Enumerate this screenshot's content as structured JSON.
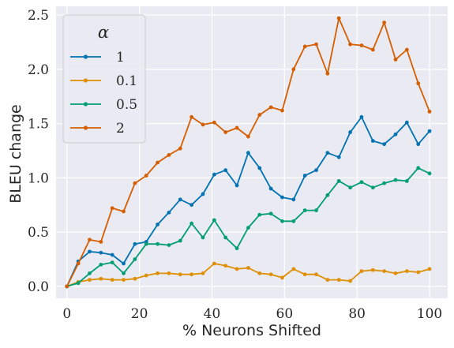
{
  "chart_data": {
    "type": "line",
    "xlabel": "% Neurons Shifted",
    "ylabel": "BLEU change",
    "xlim": [
      -3,
      105
    ],
    "ylim": [
      -0.11,
      2.58
    ],
    "xticks": [
      0,
      20,
      40,
      60,
      80,
      100
    ],
    "yticks": [
      0.0,
      0.5,
      1.0,
      1.5,
      2.0,
      2.5
    ],
    "xtick_labels": [
      "0",
      "20",
      "40",
      "60",
      "80",
      "100"
    ],
    "ytick_labels": [
      "0.0",
      "0.5",
      "1.0",
      "1.5",
      "2.0",
      "2.5"
    ],
    "grid": true,
    "legend": {
      "title": "α",
      "position": "top-left"
    },
    "x": [
      0,
      3.125,
      6.25,
      9.375,
      12.5,
      15.625,
      18.75,
      21.875,
      25,
      28.125,
      31.25,
      34.375,
      37.5,
      40.625,
      43.75,
      46.875,
      50,
      53.125,
      56.25,
      59.375,
      62.5,
      65.625,
      68.75,
      71.875,
      75,
      78.125,
      81.25,
      84.375,
      87.5,
      90.625,
      93.75,
      96.875,
      100
    ],
    "series": [
      {
        "name": "1",
        "color": "#0173b2",
        "values": [
          0.0,
          0.23,
          0.32,
          0.31,
          0.29,
          0.21,
          0.39,
          0.41,
          0.57,
          0.68,
          0.8,
          0.75,
          0.85,
          1.03,
          1.07,
          0.93,
          1.23,
          1.09,
          0.9,
          0.82,
          0.8,
          1.02,
          1.07,
          1.23,
          1.19,
          1.42,
          1.56,
          1.34,
          1.31,
          1.4,
          1.51,
          1.31,
          1.43
        ]
      },
      {
        "name": "0.1",
        "color": "#de8f05",
        "values": [
          0.0,
          0.04,
          0.06,
          0.07,
          0.06,
          0.06,
          0.07,
          0.1,
          0.12,
          0.12,
          0.11,
          0.11,
          0.12,
          0.21,
          0.19,
          0.16,
          0.17,
          0.12,
          0.11,
          0.08,
          0.16,
          0.11,
          0.11,
          0.06,
          0.06,
          0.05,
          0.14,
          0.15,
          0.14,
          0.12,
          0.14,
          0.13,
          0.16
        ]
      },
      {
        "name": "0.5",
        "color": "#029e73",
        "values": [
          0.0,
          0.03,
          0.12,
          0.2,
          0.22,
          0.12,
          0.25,
          0.39,
          0.39,
          0.38,
          0.42,
          0.58,
          0.45,
          0.61,
          0.45,
          0.35,
          0.54,
          0.66,
          0.67,
          0.6,
          0.6,
          0.7,
          0.7,
          0.84,
          0.97,
          0.91,
          0.96,
          0.91,
          0.95,
          0.98,
          0.97,
          1.09,
          1.04
        ]
      },
      {
        "name": "2",
        "color": "#d55e00",
        "values": [
          0.0,
          0.21,
          0.43,
          0.41,
          0.72,
          0.69,
          0.95,
          1.02,
          1.14,
          1.21,
          1.27,
          1.56,
          1.49,
          1.51,
          1.42,
          1.46,
          1.38,
          1.58,
          1.65,
          1.62,
          2.0,
          2.21,
          2.23,
          1.96,
          2.47,
          2.23,
          2.22,
          2.18,
          2.43,
          2.09,
          2.18,
          1.87,
          1.61
        ]
      }
    ]
  }
}
